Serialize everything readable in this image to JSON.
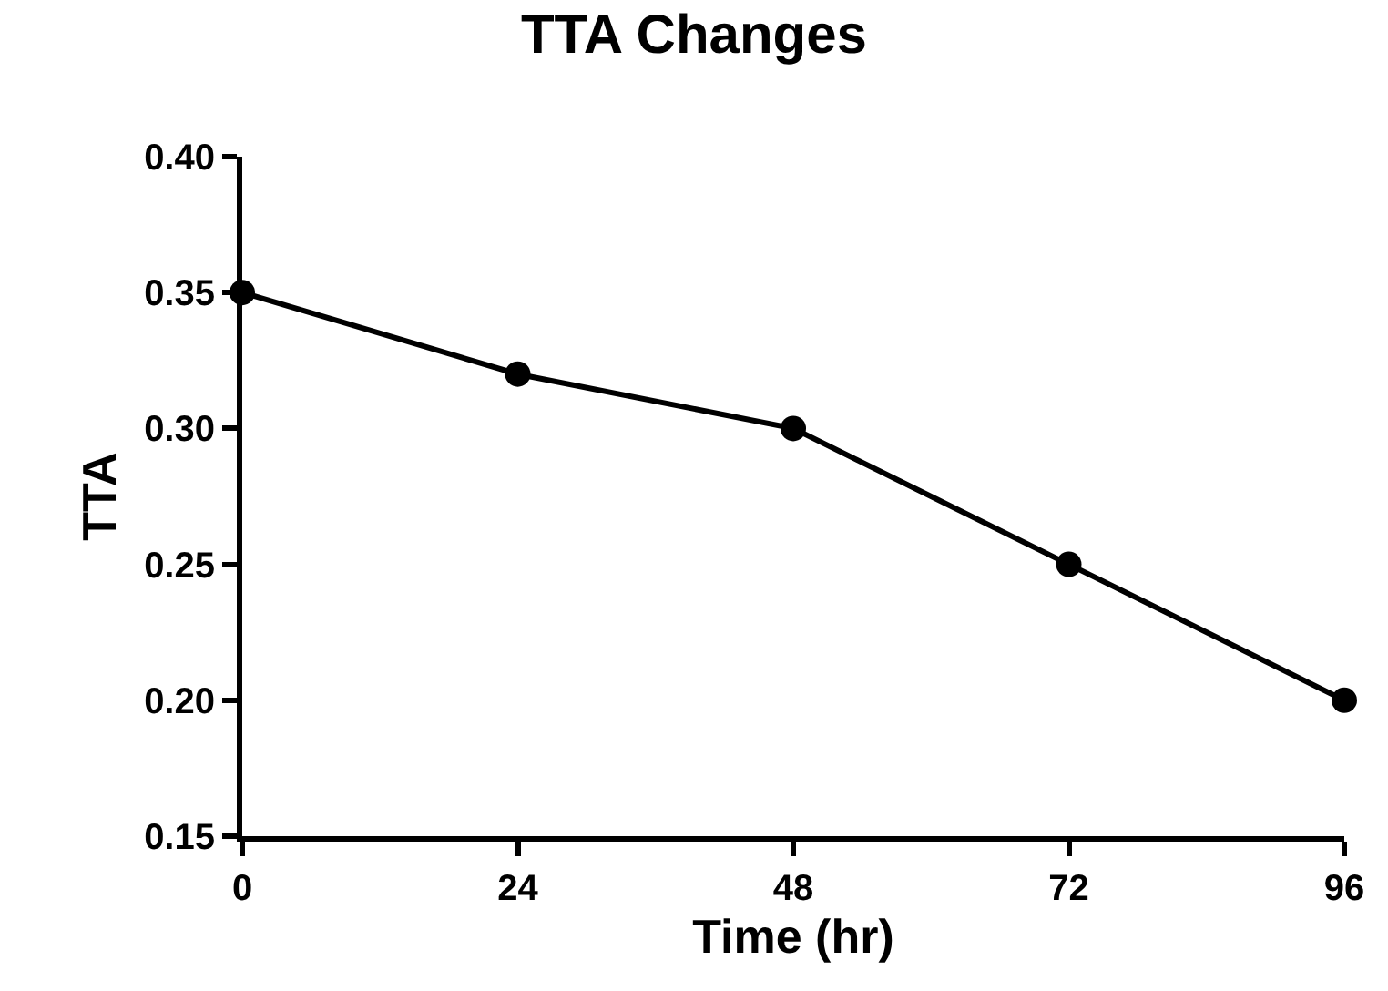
{
  "chart_data": {
    "type": "line",
    "title": "TTA Changes",
    "xlabel": "Time (hr)",
    "ylabel": "TTA",
    "x": [
      0,
      24,
      48,
      72,
      96
    ],
    "series": [
      {
        "color": "#000000",
        "values": [
          0.35,
          0.32,
          0.3,
          0.25,
          0.2
        ]
      }
    ],
    "xlim": [
      0,
      96
    ],
    "xticks": [
      0,
      24,
      48,
      72,
      96
    ],
    "ylim": [
      0.15,
      0.4
    ],
    "yticks": [
      {
        "value": 0.15,
        "label": "0.15"
      },
      {
        "value": 0.2,
        "label": "0.20"
      },
      {
        "value": 0.25,
        "label": "0.25"
      },
      {
        "value": 0.3,
        "label": "0.30"
      },
      {
        "value": 0.35,
        "label": "0.35"
      },
      {
        "value": 0.4,
        "label": "0.40"
      }
    ],
    "grid": false,
    "marker": "circle",
    "line_style": "solid"
  }
}
